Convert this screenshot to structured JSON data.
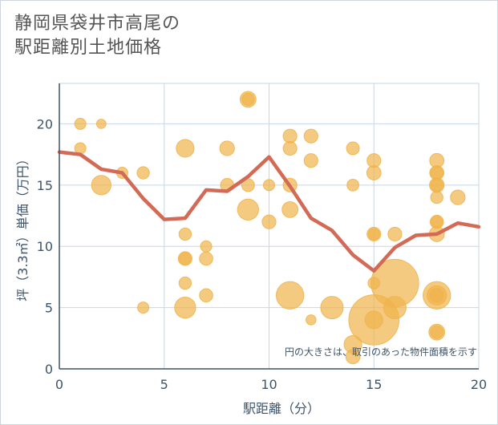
{
  "title_line1": "静岡県袋井市高尾の",
  "title_line2": "駅距離別土地価格",
  "chart_data": {
    "type": "scatter",
    "title": "静岡県袋井市高尾の駅距離別土地価格",
    "xlabel": "駅距離（分）",
    "ylabel": "坪（3.3㎡）単価（万円）",
    "xlim": [
      0,
      20
    ],
    "ylim": [
      0,
      23.3
    ],
    "xticks": [
      "0",
      "5",
      "10",
      "15",
      "20"
    ],
    "yticks": [
      "0",
      "5",
      "10",
      "15",
      "20"
    ],
    "grid": true,
    "annotation": "円の大きさは、取引のあった物件面積を示す",
    "colors": {
      "bubble": "#f0b44c",
      "line": "#d36a56",
      "grid": "#c8d6e4",
      "text": "#3f5468"
    },
    "points": [
      {
        "x": 1,
        "y": 20,
        "s": 1
      },
      {
        "x": 1,
        "y": 18,
        "s": 1
      },
      {
        "x": 2,
        "y": 20,
        "s": 0.7
      },
      {
        "x": 2,
        "y": 15,
        "s": 3
      },
      {
        "x": 3,
        "y": 16,
        "s": 1
      },
      {
        "x": 4,
        "y": 16,
        "s": 1.2
      },
      {
        "x": 4,
        "y": 5,
        "s": 1
      },
      {
        "x": 6,
        "y": 18,
        "s": 2.5
      },
      {
        "x": 6,
        "y": 11,
        "s": 1.2
      },
      {
        "x": 6,
        "y": 9,
        "s": 1.5
      },
      {
        "x": 6,
        "y": 9,
        "s": 1.1
      },
      {
        "x": 6,
        "y": 7,
        "s": 1.2
      },
      {
        "x": 6,
        "y": 5,
        "s": 3.5
      },
      {
        "x": 7,
        "y": 10,
        "s": 1
      },
      {
        "x": 7,
        "y": 9,
        "s": 1.4
      },
      {
        "x": 7,
        "y": 6,
        "s": 1.4
      },
      {
        "x": 8,
        "y": 18,
        "s": 1.7
      },
      {
        "x": 8,
        "y": 15,
        "s": 1.4
      },
      {
        "x": 9,
        "y": 22,
        "s": 2
      },
      {
        "x": 9,
        "y": 22,
        "s": 1.2
      },
      {
        "x": 9,
        "y": 15,
        "s": 1.3
      },
      {
        "x": 9,
        "y": 13,
        "s": 3.5
      },
      {
        "x": 10,
        "y": 15,
        "s": 1
      },
      {
        "x": 10,
        "y": 12,
        "s": 1.5
      },
      {
        "x": 11,
        "y": 19,
        "s": 1.5
      },
      {
        "x": 11,
        "y": 18,
        "s": 1.5
      },
      {
        "x": 11,
        "y": 15,
        "s": 1.5
      },
      {
        "x": 11,
        "y": 13,
        "s": 2
      },
      {
        "x": 11,
        "y": 6,
        "s": 6
      },
      {
        "x": 12,
        "y": 19,
        "s": 1.5
      },
      {
        "x": 12,
        "y": 17,
        "s": 1.5
      },
      {
        "x": 12,
        "y": 4,
        "s": 0.8
      },
      {
        "x": 13,
        "y": 5,
        "s": 4
      },
      {
        "x": 14,
        "y": 18,
        "s": 1.3
      },
      {
        "x": 14,
        "y": 15,
        "s": 1.1
      },
      {
        "x": 14,
        "y": 2,
        "s": 2.5
      },
      {
        "x": 14,
        "y": 1,
        "s": 1.6
      },
      {
        "x": 15,
        "y": 17,
        "s": 1.5
      },
      {
        "x": 15,
        "y": 16,
        "s": 1.6
      },
      {
        "x": 15,
        "y": 11,
        "s": 1.5
      },
      {
        "x": 15,
        "y": 11,
        "s": 1
      },
      {
        "x": 15,
        "y": 7,
        "s": 1.1
      },
      {
        "x": 15,
        "y": 4,
        "s": 20
      },
      {
        "x": 15,
        "y": 4,
        "s": 2.5
      },
      {
        "x": 16,
        "y": 11,
        "s": 1.5
      },
      {
        "x": 16,
        "y": 7,
        "s": 18
      },
      {
        "x": 16,
        "y": 5,
        "s": 4
      },
      {
        "x": 18,
        "y": 17,
        "s": 1.6
      },
      {
        "x": 18,
        "y": 16,
        "s": 1.6
      },
      {
        "x": 18,
        "y": 16,
        "s": 1.2
      },
      {
        "x": 18,
        "y": 15,
        "s": 1.7
      },
      {
        "x": 18,
        "y": 15,
        "s": 1.2
      },
      {
        "x": 18,
        "y": 14,
        "s": 1.2
      },
      {
        "x": 18,
        "y": 12,
        "s": 1.4
      },
      {
        "x": 18,
        "y": 12,
        "s": 1
      },
      {
        "x": 18,
        "y": 11,
        "s": 1.8
      },
      {
        "x": 18,
        "y": 6,
        "s": 6
      },
      {
        "x": 18,
        "y": 6,
        "s": 3
      },
      {
        "x": 18,
        "y": 6,
        "s": 1.5
      },
      {
        "x": 18,
        "y": 3,
        "s": 2
      },
      {
        "x": 18,
        "y": 3,
        "s": 1.3
      },
      {
        "x": 19,
        "y": 14,
        "s": 1.7
      }
    ],
    "trend": {
      "x": [
        0,
        1,
        2,
        3,
        4,
        5,
        6,
        7,
        8,
        9,
        10,
        11,
        12,
        13,
        14,
        15,
        16,
        17,
        18,
        19,
        20
      ],
      "y": [
        17.7,
        17.5,
        16.3,
        16.0,
        13.9,
        12.2,
        12.3,
        14.6,
        14.5,
        15.7,
        17.3,
        14.9,
        12.3,
        11.3,
        9.3,
        8.0,
        9.9,
        10.9,
        11.0,
        11.9,
        11.6
      ]
    }
  }
}
